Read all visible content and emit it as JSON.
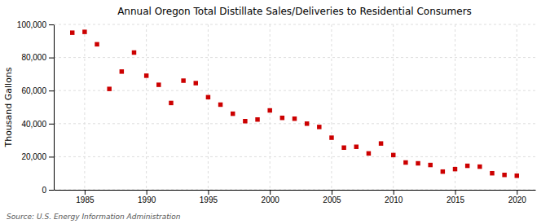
{
  "chart_data": {
    "type": "scatter",
    "title": "Annual Oregon Total Distillate Sales/Deliveries to Residential Consumers",
    "ylabel": "Thousand Gallons",
    "annotations": [
      "Source: U.S. Energy Information Administration"
    ],
    "x": [
      1984,
      1985,
      1986,
      1987,
      1988,
      1989,
      1990,
      1991,
      1992,
      1993,
      1994,
      1995,
      1996,
      1997,
      1998,
      1999,
      2000,
      2001,
      2002,
      2003,
      2004,
      2005,
      2006,
      2007,
      2008,
      2009,
      2010,
      2011,
      2012,
      2013,
      2014,
      2015,
      2016,
      2017,
      2018,
      2019,
      2020
    ],
    "values": [
      95000,
      95500,
      88000,
      61000,
      71500,
      83000,
      69000,
      63500,
      52500,
      66000,
      64500,
      56000,
      51500,
      46000,
      41500,
      42500,
      48000,
      43500,
      43000,
      40000,
      38000,
      31500,
      25500,
      26000,
      22000,
      28000,
      21000,
      16500,
      16000,
      15000,
      11000,
      12500,
      14500,
      14000,
      10000,
      9000,
      8500
    ],
    "color": "#cc0000",
    "marker": "square",
    "xlim": [
      1982.5,
      2021.5
    ],
    "xticks": [
      1985,
      1990,
      1995,
      2000,
      2005,
      2010,
      2015,
      2020
    ],
    "ylim": [
      0,
      100000
    ],
    "yticks": [
      0,
      {
        "value": 20000,
        "label": "20,000"
      },
      {
        "value": 40000,
        "label": "40,000"
      },
      {
        "value": 60000,
        "label": "60,000"
      },
      {
        "value": 80000,
        "label": "80,000"
      },
      {
        "value": 100000,
        "label": "100,000"
      }
    ],
    "grid": true
  }
}
